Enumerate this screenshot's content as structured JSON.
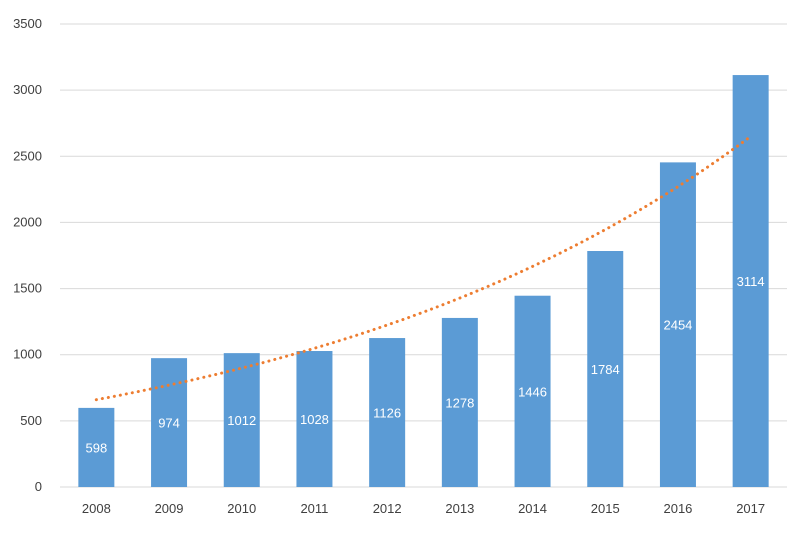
{
  "chart_data": {
    "type": "bar",
    "title": "",
    "xlabel": "",
    "ylabel": "",
    "categories": [
      "2008",
      "2009",
      "2010",
      "2011",
      "2012",
      "2013",
      "2014",
      "2015",
      "2016",
      "2017"
    ],
    "values": [
      598,
      974,
      1012,
      1028,
      1126,
      1278,
      1446,
      1784,
      2454,
      3114
    ],
    "value_labels": [
      "598",
      "974",
      "1012",
      "1028",
      "1126",
      "1278",
      "1446",
      "1784",
      "2454",
      "3114"
    ],
    "ylim": [
      0,
      3500
    ],
    "yticks": [
      "0",
      "500",
      "1000",
      "1500",
      "2000",
      "2500",
      "3000",
      "3500"
    ],
    "grid": true,
    "legend": "none",
    "trendline": {
      "type": "exponential",
      "start_value": 660,
      "end_value": 2650,
      "style": "dotted"
    },
    "colors": {
      "bar": "#5b9bd5",
      "trendline": "#ed7d31",
      "grid": "#d9d9d9",
      "axis_text": "#404040",
      "label_text": "#ffffff"
    }
  }
}
